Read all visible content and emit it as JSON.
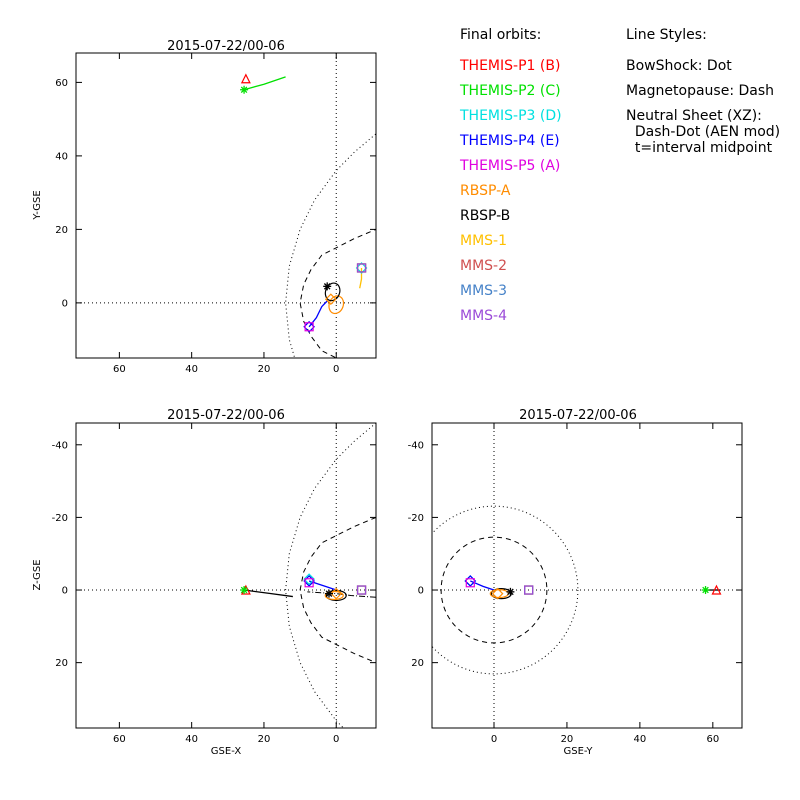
{
  "colors": {
    "THEMIS-P1": "#ff0000",
    "THEMIS-P2": "#00e000",
    "THEMIS-P3": "#00e0e0",
    "THEMIS-P4": "#0000ff",
    "THEMIS-P5": "#e000e0",
    "RBSP-A": "#ff8c00",
    "RBSP-B": "#000000",
    "MMS-1": "#ffc000",
    "MMS-2": "#d05050",
    "MMS-3": "#4682c8",
    "MMS-4": "#9b4bd8"
  },
  "legend": {
    "title": "Final orbits:",
    "entries": [
      {
        "label": "THEMIS-P1 (B)",
        "color": "#ff0000"
      },
      {
        "label": "THEMIS-P2 (C)",
        "color": "#00e000"
      },
      {
        "label": "THEMIS-P3 (D)",
        "color": "#00e0e0"
      },
      {
        "label": "THEMIS-P4 (E)",
        "color": "#0000ff"
      },
      {
        "label": "THEMIS-P5 (A)",
        "color": "#e000e0"
      },
      {
        "label": "RBSP-A",
        "color": "#ff8c00"
      },
      {
        "label": "RBSP-B",
        "color": "#000000"
      },
      {
        "label": "MMS-1",
        "color": "#ffc000"
      },
      {
        "label": "MMS-2",
        "color": "#d05050"
      },
      {
        "label": "MMS-3",
        "color": "#4682c8"
      },
      {
        "label": "MMS-4",
        "color": "#9b4bd8"
      }
    ]
  },
  "styles": {
    "title": "Line Styles:",
    "lines": [
      "BowShock: Dot",
      "Magnetopause: Dash",
      "Neutral Sheet (XZ):",
      "  Dash-Dot (AEN mod)",
      "  t=interval midpoint"
    ]
  },
  "chart_data": [
    {
      "type": "scatter",
      "title": "2015-07-22/00-06",
      "xlabel": "",
      "ylabel": "Y-GSE",
      "xlim": [
        72,
        -11
      ],
      "ylim": [
        68,
        -15
      ],
      "xticks": [
        60,
        40,
        20,
        0
      ],
      "yticks": [
        0,
        20,
        40,
        60
      ],
      "bowshock": [
        [
          15,
          -10
        ],
        [
          14,
          0
        ],
        [
          13,
          10
        ],
        [
          10,
          20
        ],
        [
          6,
          28
        ],
        [
          0,
          36
        ],
        [
          -10,
          47
        ]
      ],
      "magnetopause": [
        [
          10,
          -5
        ],
        [
          10,
          0
        ],
        [
          9,
          5
        ],
        [
          7,
          9
        ],
        [
          4,
          13
        ],
        [
          0,
          15
        ],
        [
          -6,
          18
        ],
        [
          -10,
          20
        ]
      ],
      "series": [
        {
          "name": "THEMIS-P1",
          "symbol": "triangle",
          "end": [
            25,
            61
          ]
        },
        {
          "name": "THEMIS-P2",
          "symbol": "asterisk",
          "end": [
            25.5,
            58
          ],
          "track": [
            [
              25.5,
              58
            ],
            [
              20,
              59.5
            ],
            [
              14,
              61.5
            ]
          ]
        },
        {
          "name": "THEMIS-P3",
          "symbol": "diamond",
          "end": [
            -7,
            9.5
          ]
        },
        {
          "name": "THEMIS-P4",
          "symbol": "diamond",
          "end": [
            7.5,
            -6.5
          ],
          "track": [
            [
              7.5,
              -6.5
            ],
            [
              5.5,
              -4
            ],
            [
              4,
              -1
            ],
            [
              2.5,
              0.5
            ]
          ]
        },
        {
          "name": "THEMIS-P5",
          "symbol": "square",
          "end": [
            7.5,
            -6.5
          ]
        },
        {
          "name": "RBSP-A",
          "symbol": "diamond",
          "end": [
            1.5,
            1
          ],
          "track": "loop"
        },
        {
          "name": "RBSP-B",
          "symbol": "asterisk",
          "end": [
            2.5,
            4.5
          ],
          "track": "loop"
        },
        {
          "name": "MMS-1",
          "symbol": "square",
          "end": [
            -7,
            9.5
          ],
          "track": [
            [
              -6.5,
              4
            ],
            [
              -7,
              6.5
            ],
            [
              -7,
              9.5
            ]
          ]
        },
        {
          "name": "MMS-2",
          "symbol": "square",
          "end": [
            -7,
            9.5
          ]
        },
        {
          "name": "MMS-3",
          "symbol": "square",
          "end": [
            -7,
            9.5
          ]
        },
        {
          "name": "MMS-4",
          "symbol": "square",
          "end": [
            -7,
            9.5
          ]
        }
      ]
    },
    {
      "type": "scatter",
      "title": "2015-07-22/00-06",
      "xlabel": "GSE-X",
      "ylabel": "Z-GSE",
      "xlim": [
        72,
        -11
      ],
      "ylim": [
        -46,
        38
      ],
      "xticks": [
        60,
        40,
        20,
        0
      ],
      "yticks": [
        -40,
        -20,
        0,
        20
      ],
      "bowshock": "dotted",
      "magnetopause": "dashed",
      "neutral_sheet": "dash-dot",
      "series": [
        {
          "name": "THEMIS-P1",
          "symbol": "triangle",
          "end": [
            25,
            0
          ]
        },
        {
          "name": "THEMIS-P2",
          "symbol": "asterisk",
          "end": [
            25.5,
            0
          ]
        },
        {
          "name": "THEMIS-P3",
          "symbol": "diamond",
          "end": [
            7.5,
            -3
          ]
        },
        {
          "name": "THEMIS-P4",
          "symbol": "diamond",
          "end": [
            7.5,
            -2.5
          ]
        },
        {
          "name": "THEMIS-P5",
          "symbol": "square",
          "end": [
            7.5,
            -2
          ]
        },
        {
          "name": "RBSP-A",
          "symbol": "diamond",
          "end": [
            0,
            1
          ]
        },
        {
          "name": "RBSP-B",
          "symbol": "asterisk",
          "end": [
            2,
            1
          ]
        },
        {
          "name": "MMS-1",
          "symbol": "square",
          "end": [
            -7,
            0
          ]
        },
        {
          "name": "MMS-2",
          "symbol": "square",
          "end": [
            -7,
            0
          ]
        },
        {
          "name": "MMS-3",
          "symbol": "square",
          "end": [
            -7,
            0
          ]
        },
        {
          "name": "MMS-4",
          "symbol": "square",
          "end": [
            -7,
            0
          ]
        }
      ]
    },
    {
      "type": "scatter",
      "title": "2015-07-22/00-06",
      "xlabel": "GSE-Y",
      "ylabel": "",
      "xlim": [
        -17,
        68
      ],
      "ylim": [
        -46,
        38
      ],
      "xticks": [
        0,
        20,
        40,
        60
      ],
      "yticks": [
        -40,
        -20,
        0,
        20
      ],
      "bowshock_radius": 23,
      "magnetopause_radius": 14.5,
      "series": [
        {
          "name": "THEMIS-P1",
          "symbol": "triangle",
          "end": [
            61,
            0
          ]
        },
        {
          "name": "THEMIS-P2",
          "symbol": "asterisk",
          "end": [
            58,
            0
          ]
        },
        {
          "name": "THEMIS-P3",
          "symbol": "diamond",
          "end": [
            -6.5,
            -2.5
          ]
        },
        {
          "name": "THEMIS-P4",
          "symbol": "diamond",
          "end": [
            -6.5,
            -2.5
          ]
        },
        {
          "name": "THEMIS-P5",
          "symbol": "square",
          "end": [
            -6.5,
            -2
          ]
        },
        {
          "name": "RBSP-A",
          "symbol": "diamond",
          "end": [
            1,
            1
          ]
        },
        {
          "name": "RBSP-B",
          "symbol": "asterisk",
          "end": [
            4.5,
            0.5
          ]
        },
        {
          "name": "MMS-1",
          "symbol": "square",
          "end": [
            9.5,
            0
          ]
        },
        {
          "name": "MMS-2",
          "symbol": "square",
          "end": [
            9.5,
            0
          ]
        },
        {
          "name": "MMS-3",
          "symbol": "square",
          "end": [
            9.5,
            0
          ]
        },
        {
          "name": "MMS-4",
          "symbol": "square",
          "end": [
            9.5,
            0
          ]
        }
      ]
    }
  ]
}
